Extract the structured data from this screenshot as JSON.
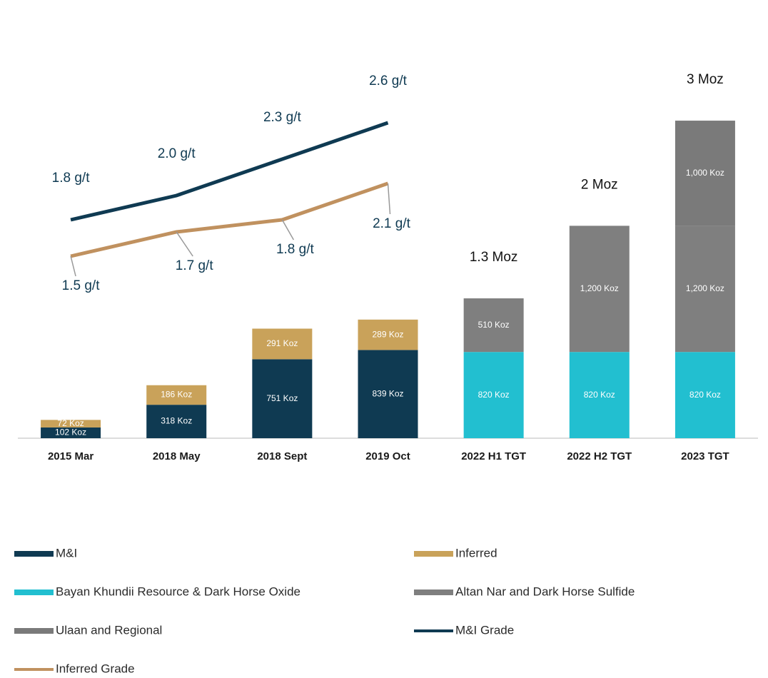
{
  "chart_data": {
    "type": "bar",
    "categories": [
      "2015 Mar",
      "2018 May",
      "2018 Sept",
      "2019 Oct",
      "2022 H1 TGT",
      "2022 H2 TGT",
      "2023 TGT"
    ],
    "ylim": [
      0,
      3000
    ],
    "y2lim": [
      0,
      2.6
    ],
    "series": [
      {
        "name": "M&I",
        "type": "bar",
        "color": "#0f3a52",
        "values": [
          102,
          318,
          751,
          839,
          null,
          null,
          null
        ],
        "value_labels": [
          "102 Koz",
          "318 Koz",
          "751 Koz",
          "839 Koz",
          null,
          null,
          null
        ]
      },
      {
        "name": "Inferred",
        "type": "bar",
        "color": "#c9a25a",
        "values": [
          72,
          186,
          291,
          289,
          null,
          null,
          null
        ],
        "value_labels": [
          "72 Koz",
          "186 Koz",
          "291 Koz",
          "289 Koz",
          null,
          null,
          null
        ]
      },
      {
        "name": "Bayan Khundii Resource & Dark Horse Oxide",
        "type": "bar",
        "color": "#22bfd0",
        "values": [
          null,
          null,
          null,
          null,
          820,
          820,
          820
        ],
        "value_labels": [
          null,
          null,
          null,
          null,
          "820 Koz",
          "820 Koz",
          "820 Koz"
        ]
      },
      {
        "name": "Altan Nar and Dark Horse Sulfide",
        "type": "bar",
        "color": "#7f7f7f",
        "values": [
          null,
          null,
          null,
          null,
          510,
          1200,
          1200
        ],
        "value_labels": [
          null,
          null,
          null,
          null,
          "510 Koz",
          "1,200 Koz",
          "1,200 Koz"
        ]
      },
      {
        "name": "Ulaan and Regional",
        "type": "bar",
        "color": "#7a7a7a",
        "values": [
          null,
          null,
          null,
          null,
          null,
          null,
          1000
        ],
        "value_labels": [
          null,
          null,
          null,
          null,
          null,
          null,
          "1,000 Koz"
        ]
      },
      {
        "name": "M&I Grade",
        "type": "line",
        "axis": "y2",
        "color": "#0f3a52",
        "values": [
          1.8,
          2.0,
          2.3,
          2.6,
          null,
          null,
          null
        ],
        "value_labels": [
          "1.8 g/t",
          "2.0 g/t",
          "2.3 g/t",
          "2.6 g/t",
          null,
          null,
          null
        ]
      },
      {
        "name": "Inferred Grade",
        "type": "line",
        "axis": "y2",
        "color": "#c0915f",
        "values": [
          1.5,
          1.7,
          1.8,
          2.1,
          null,
          null,
          null
        ],
        "value_labels": [
          "1.5 g/t",
          "1.7 g/t",
          "1.8 g/t",
          "2.1 g/t",
          null,
          null,
          null
        ]
      }
    ],
    "annotations": [
      "1.3 Moz",
      "2 Moz",
      "3 Moz"
    ]
  }
}
